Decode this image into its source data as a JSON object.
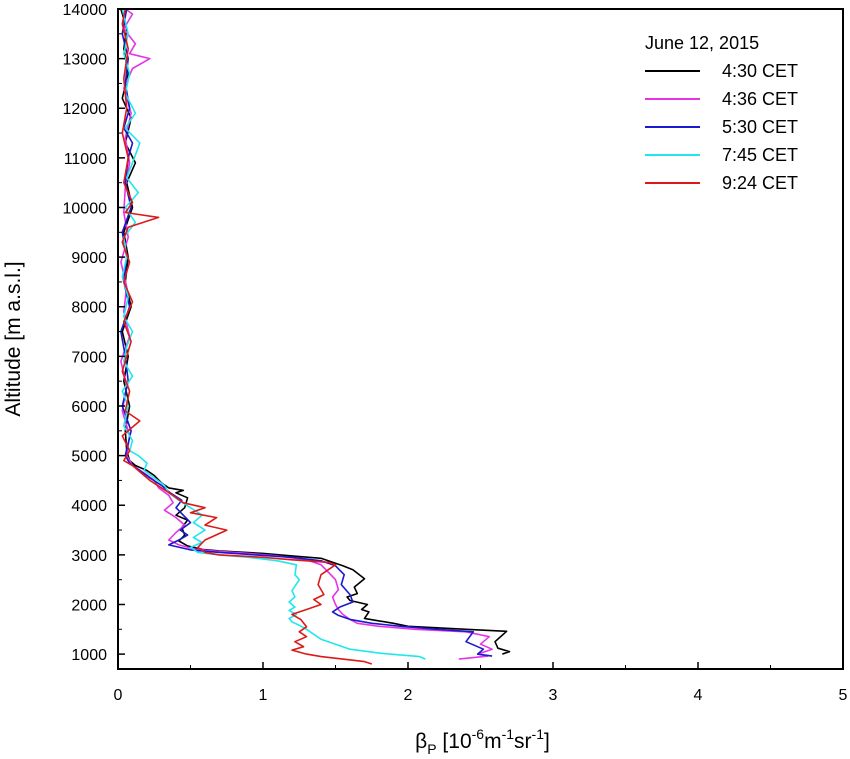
{
  "chart_data": {
    "type": "line",
    "xlabel": "β_P [10^-6 m^-1 sr^-1]",
    "xlabel_parts": {
      "symbol": "β",
      "sub": "P",
      "open": " [10",
      "exp1": "-6",
      "m": "m",
      "exp2": "-1",
      "sr": "sr",
      "exp3": "-1",
      "close": "]"
    },
    "ylabel": "Altitude [m a.s.l.]",
    "xlim": [
      0,
      5
    ],
    "ylim": [
      700,
      14000
    ],
    "xticks": [
      0,
      1,
      2,
      3,
      4,
      5
    ],
    "yticks": [
      1000,
      2000,
      3000,
      4000,
      5000,
      6000,
      7000,
      8000,
      9000,
      10000,
      11000,
      12000,
      13000,
      14000
    ],
    "grid": false,
    "legend": {
      "title": "June 12, 2015",
      "placement": "top-right"
    },
    "series": [
      {
        "name": "4:30 CET",
        "color": "#000000",
        "points": [
          [
            2.65,
            1000
          ],
          [
            2.7,
            1050
          ],
          [
            2.62,
            1120
          ],
          [
            2.6,
            1250
          ],
          [
            2.68,
            1460
          ],
          [
            2.4,
            1500
          ],
          [
            2.0,
            1560
          ],
          [
            1.9,
            1620
          ],
          [
            1.78,
            1680
          ],
          [
            1.7,
            1720
          ],
          [
            1.73,
            1850
          ],
          [
            1.68,
            1900
          ],
          [
            1.72,
            2000
          ],
          [
            1.6,
            2080
          ],
          [
            1.58,
            2150
          ],
          [
            1.65,
            2220
          ],
          [
            1.63,
            2350
          ],
          [
            1.7,
            2520
          ],
          [
            1.62,
            2700
          ],
          [
            1.55,
            2780
          ],
          [
            1.48,
            2850
          ],
          [
            1.4,
            2930
          ],
          [
            1.2,
            2980
          ],
          [
            1.0,
            3030
          ],
          [
            0.7,
            3080
          ],
          [
            0.58,
            3110
          ],
          [
            0.48,
            3180
          ],
          [
            0.42,
            3280
          ],
          [
            0.46,
            3400
          ],
          [
            0.44,
            3550
          ],
          [
            0.48,
            3700
          ],
          [
            0.4,
            3800
          ],
          [
            0.46,
            3950
          ],
          [
            0.48,
            4150
          ],
          [
            0.4,
            4250
          ],
          [
            0.45,
            4300
          ],
          [
            0.35,
            4350
          ],
          [
            0.3,
            4450
          ],
          [
            0.25,
            4600
          ],
          [
            0.2,
            4700
          ],
          [
            0.12,
            4800
          ],
          [
            0.08,
            4900
          ],
          [
            0.06,
            5100
          ],
          [
            0.05,
            5500
          ],
          [
            0.08,
            6000
          ],
          [
            0.04,
            6500
          ],
          [
            0.07,
            7000
          ],
          [
            0.03,
            7500
          ],
          [
            0.09,
            8000
          ],
          [
            0.05,
            8500
          ],
          [
            0.07,
            9000
          ],
          [
            0.04,
            9500
          ],
          [
            0.1,
            10000
          ],
          [
            0.06,
            10500
          ],
          [
            0.12,
            10900
          ],
          [
            0.05,
            11300
          ],
          [
            0.09,
            11800
          ],
          [
            0.03,
            12200
          ],
          [
            0.07,
            12700
          ],
          [
            0.04,
            13200
          ],
          [
            0.06,
            13600
          ],
          [
            0.02,
            14000
          ]
        ]
      },
      {
        "name": "4:36 CET",
        "color": "#e633e6",
        "points": [
          [
            2.35,
            900
          ],
          [
            2.45,
            930
          ],
          [
            2.55,
            960
          ],
          [
            2.48,
            1000
          ],
          [
            2.58,
            1100
          ],
          [
            2.5,
            1200
          ],
          [
            2.56,
            1350
          ],
          [
            2.4,
            1450
          ],
          [
            2.05,
            1500
          ],
          [
            1.8,
            1560
          ],
          [
            1.65,
            1620
          ],
          [
            1.6,
            1700
          ],
          [
            1.55,
            1800
          ],
          [
            1.52,
            1900
          ],
          [
            1.5,
            2000
          ],
          [
            1.48,
            2150
          ],
          [
            1.52,
            2300
          ],
          [
            1.5,
            2500
          ],
          [
            1.45,
            2650
          ],
          [
            1.4,
            2800
          ],
          [
            1.3,
            2900
          ],
          [
            1.1,
            2980
          ],
          [
            0.9,
            3030
          ],
          [
            0.65,
            3080
          ],
          [
            0.52,
            3120
          ],
          [
            0.42,
            3200
          ],
          [
            0.35,
            3300
          ],
          [
            0.4,
            3450
          ],
          [
            0.46,
            3600
          ],
          [
            0.4,
            3750
          ],
          [
            0.32,
            3900
          ],
          [
            0.38,
            4050
          ],
          [
            0.35,
            4200
          ],
          [
            0.28,
            4350
          ],
          [
            0.25,
            4500
          ],
          [
            0.18,
            4650
          ],
          [
            0.1,
            4800
          ],
          [
            0.06,
            5000
          ],
          [
            0.08,
            5400
          ],
          [
            0.03,
            5900
          ],
          [
            0.06,
            6400
          ],
          [
            0.02,
            6900
          ],
          [
            0.08,
            7400
          ],
          [
            0.04,
            7900
          ],
          [
            0.06,
            8400
          ],
          [
            0.02,
            8900
          ],
          [
            0.07,
            9400
          ],
          [
            0.04,
            9900
          ],
          [
            0.05,
            10400
          ],
          [
            0.08,
            10900
          ],
          [
            0.05,
            11400
          ],
          [
            0.09,
            11900
          ],
          [
            0.04,
            12400
          ],
          [
            0.1,
            12800
          ],
          [
            0.22,
            13000
          ],
          [
            0.08,
            13100
          ],
          [
            0.12,
            13300
          ],
          [
            0.04,
            13600
          ],
          [
            0.1,
            13900
          ],
          [
            0.05,
            14000
          ]
        ]
      },
      {
        "name": "5:30 CET",
        "color": "#1a1acc",
        "points": [
          [
            2.58,
            960
          ],
          [
            2.48,
            1000
          ],
          [
            2.52,
            1100
          ],
          [
            2.4,
            1250
          ],
          [
            2.45,
            1450
          ],
          [
            2.2,
            1500
          ],
          [
            1.95,
            1560
          ],
          [
            1.75,
            1620
          ],
          [
            1.6,
            1700
          ],
          [
            1.52,
            1780
          ],
          [
            1.48,
            1850
          ],
          [
            1.53,
            1950
          ],
          [
            1.62,
            2050
          ],
          [
            1.6,
            2200
          ],
          [
            1.54,
            2400
          ],
          [
            1.56,
            2600
          ],
          [
            1.5,
            2780
          ],
          [
            1.4,
            2880
          ],
          [
            1.2,
            2950
          ],
          [
            0.95,
            3000
          ],
          [
            0.7,
            3050
          ],
          [
            0.5,
            3100
          ],
          [
            0.35,
            3200
          ],
          [
            0.42,
            3300
          ],
          [
            0.48,
            3400
          ],
          [
            0.43,
            3500
          ],
          [
            0.5,
            3650
          ],
          [
            0.45,
            3800
          ],
          [
            0.4,
            3950
          ],
          [
            0.44,
            4100
          ],
          [
            0.36,
            4250
          ],
          [
            0.3,
            4400
          ],
          [
            0.22,
            4550
          ],
          [
            0.15,
            4700
          ],
          [
            0.08,
            4850
          ],
          [
            0.05,
            5000
          ],
          [
            0.09,
            5500
          ],
          [
            0.03,
            6000
          ],
          [
            0.07,
            6500
          ],
          [
            0.05,
            7000
          ],
          [
            0.02,
            7500
          ],
          [
            0.08,
            8000
          ],
          [
            0.04,
            8500
          ],
          [
            0.06,
            9000
          ],
          [
            0.03,
            9500
          ],
          [
            0.09,
            10000
          ],
          [
            0.05,
            10500
          ],
          [
            0.07,
            11000
          ],
          [
            0.1,
            11300
          ],
          [
            0.04,
            11600
          ],
          [
            0.08,
            12000
          ],
          [
            0.05,
            12500
          ],
          [
            0.07,
            13000
          ],
          [
            0.03,
            13500
          ],
          [
            0.06,
            14000
          ]
        ]
      },
      {
        "name": "7:45 CET",
        "color": "#22e6ee",
        "points": [
          [
            2.12,
            900
          ],
          [
            2.08,
            950
          ],
          [
            1.8,
            1020
          ],
          [
            1.6,
            1100
          ],
          [
            1.5,
            1200
          ],
          [
            1.4,
            1300
          ],
          [
            1.35,
            1400
          ],
          [
            1.3,
            1500
          ],
          [
            1.25,
            1580
          ],
          [
            1.2,
            1650
          ],
          [
            1.18,
            1720
          ],
          [
            1.23,
            1800
          ],
          [
            1.18,
            1880
          ],
          [
            1.22,
            1950
          ],
          [
            1.18,
            2050
          ],
          [
            1.22,
            2150
          ],
          [
            1.2,
            2280
          ],
          [
            1.25,
            2500
          ],
          [
            1.22,
            2600
          ],
          [
            1.23,
            2800
          ],
          [
            1.1,
            2880
          ],
          [
            0.9,
            2950
          ],
          [
            0.7,
            3000
          ],
          [
            0.55,
            3050
          ],
          [
            0.5,
            3150
          ],
          [
            0.58,
            3250
          ],
          [
            0.52,
            3350
          ],
          [
            0.6,
            3500
          ],
          [
            0.52,
            3650
          ],
          [
            0.58,
            3800
          ],
          [
            0.5,
            3950
          ],
          [
            0.42,
            4100
          ],
          [
            0.35,
            4250
          ],
          [
            0.32,
            4400
          ],
          [
            0.25,
            4550
          ],
          [
            0.18,
            4700
          ],
          [
            0.2,
            4850
          ],
          [
            0.14,
            5000
          ],
          [
            0.08,
            5100
          ],
          [
            0.1,
            5300
          ],
          [
            0.04,
            5600
          ],
          [
            0.07,
            6000
          ],
          [
            0.03,
            6300
          ],
          [
            0.1,
            6600
          ],
          [
            0.04,
            6900
          ],
          [
            0.06,
            7200
          ],
          [
            0.1,
            7500
          ],
          [
            0.04,
            7800
          ],
          [
            0.07,
            8200
          ],
          [
            0.03,
            8600
          ],
          [
            0.06,
            9000
          ],
          [
            0.04,
            9400
          ],
          [
            0.12,
            9700
          ],
          [
            0.05,
            10000
          ],
          [
            0.14,
            10300
          ],
          [
            0.06,
            10600
          ],
          [
            0.1,
            10900
          ],
          [
            0.15,
            11300
          ],
          [
            0.05,
            11600
          ],
          [
            0.12,
            11900
          ],
          [
            0.05,
            12300
          ],
          [
            0.08,
            12700
          ],
          [
            0.04,
            13100
          ],
          [
            0.07,
            13500
          ],
          [
            0.03,
            14000
          ]
        ]
      },
      {
        "name": "9:24 CET",
        "color": "#dd1a1a",
        "points": [
          [
            1.75,
            800
          ],
          [
            1.7,
            850
          ],
          [
            1.55,
            900
          ],
          [
            1.4,
            950
          ],
          [
            1.3,
            1000
          ],
          [
            1.2,
            1080
          ],
          [
            1.28,
            1150
          ],
          [
            1.22,
            1250
          ],
          [
            1.3,
            1350
          ],
          [
            1.25,
            1450
          ],
          [
            1.3,
            1550
          ],
          [
            1.26,
            1700
          ],
          [
            1.2,
            1800
          ],
          [
            1.3,
            1900
          ],
          [
            1.4,
            2000
          ],
          [
            1.35,
            2100
          ],
          [
            1.42,
            2200
          ],
          [
            1.38,
            2400
          ],
          [
            1.4,
            2600
          ],
          [
            1.5,
            2800
          ],
          [
            1.45,
            2850
          ],
          [
            1.2,
            2900
          ],
          [
            1.0,
            2950
          ],
          [
            0.7,
            3000
          ],
          [
            0.6,
            3050
          ],
          [
            0.55,
            3150
          ],
          [
            0.6,
            3300
          ],
          [
            0.75,
            3500
          ],
          [
            0.6,
            3600
          ],
          [
            0.68,
            3750
          ],
          [
            0.5,
            3850
          ],
          [
            0.6,
            3950
          ],
          [
            0.45,
            4050
          ],
          [
            0.38,
            4200
          ],
          [
            0.3,
            4350
          ],
          [
            0.22,
            4500
          ],
          [
            0.16,
            4650
          ],
          [
            0.1,
            4800
          ],
          [
            0.04,
            4900
          ],
          [
            0.08,
            5100
          ],
          [
            0.03,
            5400
          ],
          [
            0.15,
            5700
          ],
          [
            0.05,
            5900
          ],
          [
            0.08,
            6300
          ],
          [
            0.03,
            6700
          ],
          [
            0.06,
            7000
          ],
          [
            0.09,
            7300
          ],
          [
            0.04,
            7700
          ],
          [
            0.1,
            8100
          ],
          [
            0.04,
            8500
          ],
          [
            0.08,
            8900
          ],
          [
            0.03,
            9300
          ],
          [
            0.07,
            9600
          ],
          [
            0.28,
            9800
          ],
          [
            0.05,
            9900
          ],
          [
            0.1,
            10100
          ],
          [
            0.04,
            10500
          ],
          [
            0.07,
            11000
          ],
          [
            0.03,
            11500
          ],
          [
            0.06,
            12000
          ],
          [
            0.04,
            12600
          ],
          [
            0.07,
            13200
          ],
          [
            0.03,
            13700
          ],
          [
            0.05,
            14000
          ]
        ]
      }
    ]
  }
}
